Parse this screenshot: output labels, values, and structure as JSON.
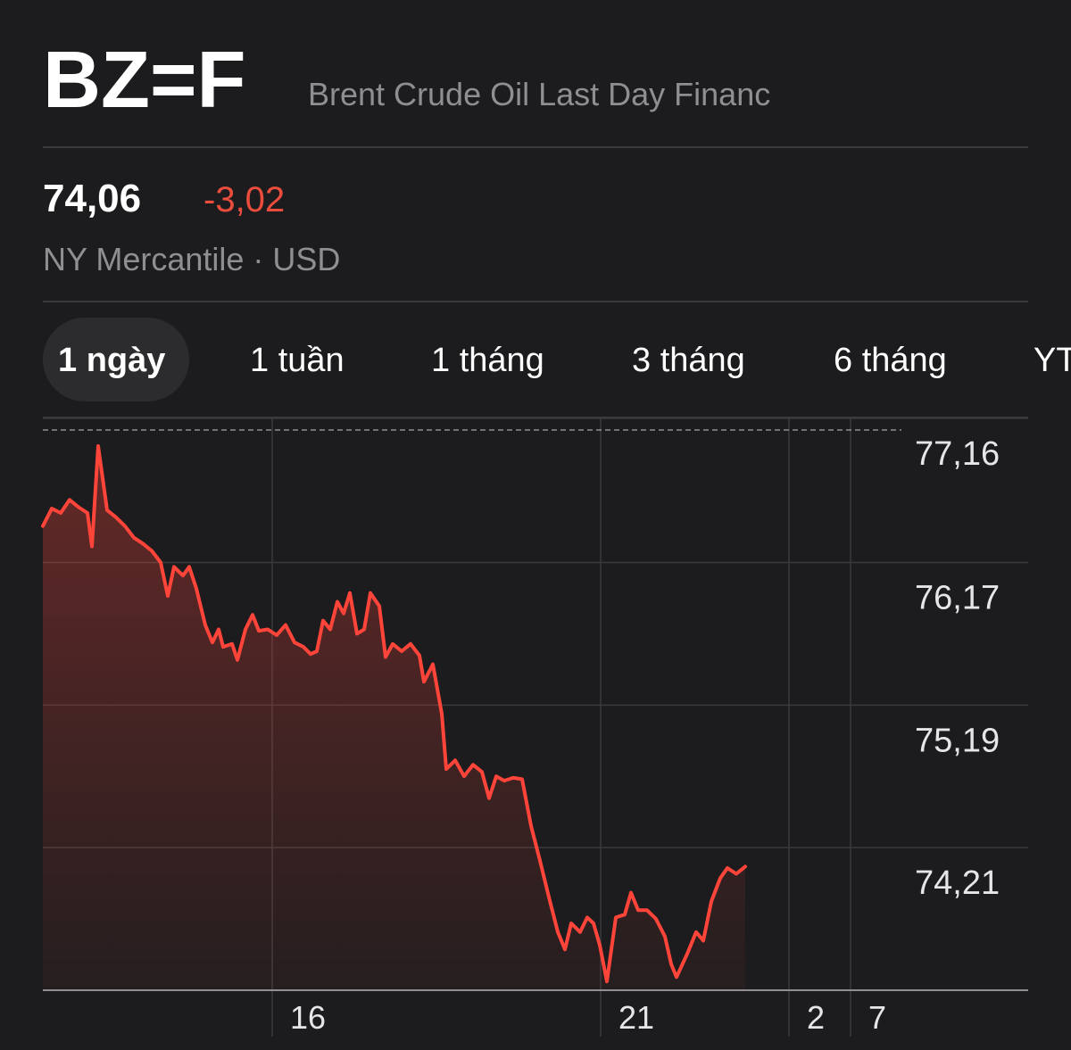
{
  "header": {
    "symbol": "BZ=F",
    "name": "Brent Crude Oil Last Day Financ"
  },
  "quote": {
    "price": "74,06",
    "change": "-3,02",
    "exchange": "NY Mercantile · USD"
  },
  "tabs": {
    "items": [
      "1 ngày",
      "1 tuần",
      "1 tháng",
      "3 tháng",
      "6 tháng",
      "YT"
    ],
    "selected": 0
  },
  "chart_data": {
    "type": "line",
    "x": [
      0,
      10,
      20,
      30,
      40,
      50,
      55,
      62,
      72,
      82,
      92,
      102,
      112,
      122,
      132,
      140,
      147,
      157,
      164,
      172,
      182,
      190,
      197,
      202,
      212,
      218,
      227,
      235,
      242,
      252,
      262,
      272,
      282,
      292,
      300,
      307,
      314,
      322,
      330,
      337,
      344,
      352,
      360,
      367,
      377,
      384,
      392,
      402,
      412,
      422,
      427,
      437,
      447,
      452,
      462,
      472,
      482,
      492,
      500,
      508,
      517,
      527,
      537,
      547,
      557,
      567,
      577,
      585,
      592,
      602,
      610,
      617,
      624,
      632,
      642,
      652,
      659,
      667,
      677,
      687,
      697,
      704,
      710,
      722,
      732,
      740,
      749,
      759,
      767,
      777,
      787
    ],
    "series": [
      {
        "color": "#ff453a",
        "values": [
          76.42,
          76.54,
          76.51,
          76.6,
          76.55,
          76.51,
          76.28,
          76.97,
          76.53,
          76.48,
          76.42,
          76.34,
          76.3,
          76.25,
          76.17,
          75.94,
          76.14,
          76.08,
          76.14,
          75.99,
          75.74,
          75.62,
          75.71,
          75.59,
          75.61,
          75.5,
          75.71,
          75.81,
          75.7,
          75.71,
          75.67,
          75.74,
          75.62,
          75.59,
          75.54,
          75.56,
          75.77,
          75.71,
          75.9,
          75.82,
          75.96,
          75.68,
          75.71,
          75.96,
          75.87,
          75.52,
          75.61,
          75.56,
          75.61,
          75.53,
          75.35,
          75.47,
          75.13,
          74.75,
          74.81,
          74.7,
          74.78,
          74.73,
          74.55,
          74.7,
          74.67,
          74.69,
          74.68,
          74.36,
          74.12,
          73.87,
          73.63,
          73.51,
          73.69,
          73.63,
          73.73,
          73.69,
          73.54,
          73.29,
          73.73,
          73.75,
          73.9,
          73.78,
          73.78,
          73.72,
          73.6,
          73.41,
          73.32,
          73.48,
          73.63,
          73.57,
          73.84,
          74.0,
          74.07,
          74.03,
          74.08
        ]
      }
    ],
    "xlim": [
      0,
      962
    ],
    "xticks": [
      {
        "value": 257,
        "label": "16"
      },
      {
        "value": 625,
        "label": "21"
      },
      {
        "value": 836,
        "label": "2"
      },
      {
        "value": 905,
        "label": "7"
      }
    ],
    "ylim": [
      73.23,
      77.16
    ],
    "yticks": [
      {
        "value": 77.16,
        "label": "77,16"
      },
      {
        "value": 76.17,
        "label": "76,17"
      },
      {
        "value": 75.19,
        "label": "75,19"
      },
      {
        "value": 74.21,
        "label": "74,21"
      }
    ],
    "previous_close": 77.08,
    "grid": true
  }
}
